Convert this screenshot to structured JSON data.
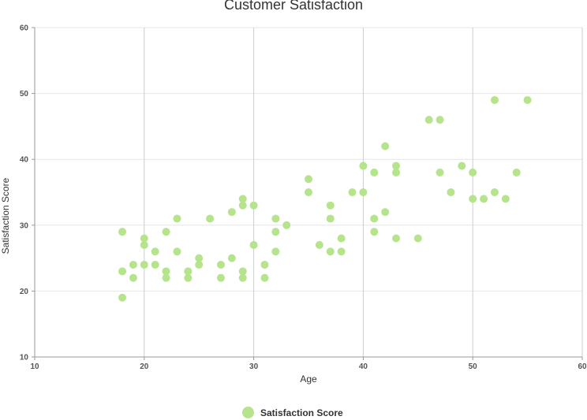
{
  "chart_data": {
    "type": "scatter",
    "title": "Customer Satisfaction",
    "xlabel": "Age",
    "ylabel": "Satisfaction Score",
    "xlim": [
      10,
      60
    ],
    "ylim": [
      10,
      60
    ],
    "xticks": [
      "10",
      "20",
      "30",
      "40",
      "50",
      "60"
    ],
    "yticks": [
      "10",
      "20",
      "30",
      "40",
      "50",
      "60"
    ],
    "grid": true,
    "legend_position": "bottom",
    "series": [
      {
        "name": "Satisfaction Score",
        "color": "#b5e48c",
        "points": [
          [
            18,
            29
          ],
          [
            18,
            23
          ],
          [
            18,
            19
          ],
          [
            19,
            24
          ],
          [
            19,
            22
          ],
          [
            20,
            28
          ],
          [
            20,
            27
          ],
          [
            20,
            24
          ],
          [
            21,
            26
          ],
          [
            21,
            24
          ],
          [
            22,
            29
          ],
          [
            22,
            23
          ],
          [
            22,
            22
          ],
          [
            23,
            31
          ],
          [
            23,
            26
          ],
          [
            24,
            23
          ],
          [
            24,
            22
          ],
          [
            25,
            25
          ],
          [
            25,
            24
          ],
          [
            26,
            31
          ],
          [
            27,
            24
          ],
          [
            27,
            22
          ],
          [
            28,
            32
          ],
          [
            28,
            25
          ],
          [
            29,
            34
          ],
          [
            29,
            33
          ],
          [
            29,
            23
          ],
          [
            29,
            22
          ],
          [
            30,
            33
          ],
          [
            30,
            27
          ],
          [
            31,
            24
          ],
          [
            31,
            22
          ],
          [
            32,
            31
          ],
          [
            32,
            29
          ],
          [
            32,
            26
          ],
          [
            33,
            30
          ],
          [
            35,
            37
          ],
          [
            35,
            35
          ],
          [
            36,
            27
          ],
          [
            37,
            33
          ],
          [
            37,
            31
          ],
          [
            37,
            26
          ],
          [
            38,
            28
          ],
          [
            38,
            26
          ],
          [
            39,
            35
          ],
          [
            40,
            39
          ],
          [
            40,
            35
          ],
          [
            41,
            38
          ],
          [
            41,
            31
          ],
          [
            41,
            29
          ],
          [
            42,
            42
          ],
          [
            42,
            32
          ],
          [
            43,
            39
          ],
          [
            43,
            38
          ],
          [
            43,
            28
          ],
          [
            45,
            28
          ],
          [
            46,
            46
          ],
          [
            47,
            46
          ],
          [
            47,
            38
          ],
          [
            48,
            35
          ],
          [
            49,
            39
          ],
          [
            50,
            38
          ],
          [
            50,
            34
          ],
          [
            51,
            34
          ],
          [
            52,
            49
          ],
          [
            52,
            35
          ],
          [
            53,
            34
          ],
          [
            54,
            38
          ],
          [
            55,
            49
          ]
        ]
      }
    ]
  }
}
